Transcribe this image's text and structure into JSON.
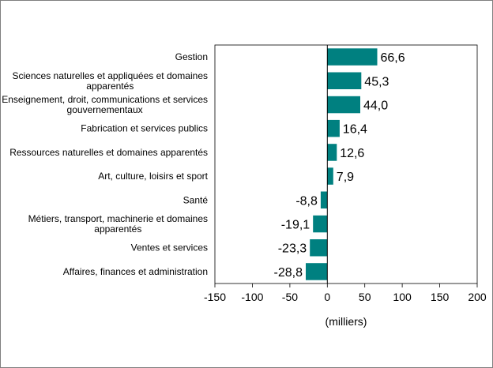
{
  "chart_data": {
    "type": "bar",
    "orientation": "horizontal",
    "categories": [
      "Gestion",
      "Sciences naturelles et appliquées et domaines apparentés",
      "Enseignement, droit, communications et services gouvernementaux",
      "Fabrication et services publics",
      "Ressources naturelles et domaines apparentés",
      "Art, culture, loisirs et sport",
      "Santé",
      "Métiers, transport, machinerie et domaines apparentés",
      "Ventes et services",
      "Affaires, finances et administration"
    ],
    "category_label_lines": [
      [
        "Gestion"
      ],
      [
        "Sciences naturelles et appliquées et domaines",
        "apparentés"
      ],
      [
        "Enseignement, droit, communications et services",
        "gouvernementaux"
      ],
      [
        "Fabrication et services publics"
      ],
      [
        "Ressources naturelles et domaines apparentés"
      ],
      [
        "Art, culture, loisirs et sport"
      ],
      [
        "Santé"
      ],
      [
        "Métiers, transport, machinerie et domaines",
        "apparentés"
      ],
      [
        "Ventes et services"
      ],
      [
        "Affaires, finances et administration"
      ]
    ],
    "values": [
      66.6,
      45.3,
      44.0,
      16.4,
      12.6,
      7.9,
      -8.8,
      -19.1,
      -23.3,
      -28.8
    ],
    "data_labels": [
      "66,6",
      "45,3",
      "44,0",
      "16,4",
      "12,6",
      "7,9",
      "-8,8",
      "-19,1",
      "-23,3",
      "-28,8"
    ],
    "xlabel": "(milliers)",
    "xlim": [
      -150,
      200
    ],
    "xticks": [
      -150,
      -100,
      -50,
      0,
      50,
      100,
      150,
      200
    ],
    "xtick_labels": [
      "-150",
      "-100",
      "-50",
      "0",
      "50",
      "100",
      "150",
      "200"
    ],
    "grid": false,
    "legend": "none",
    "bar_color": "#008080"
  }
}
